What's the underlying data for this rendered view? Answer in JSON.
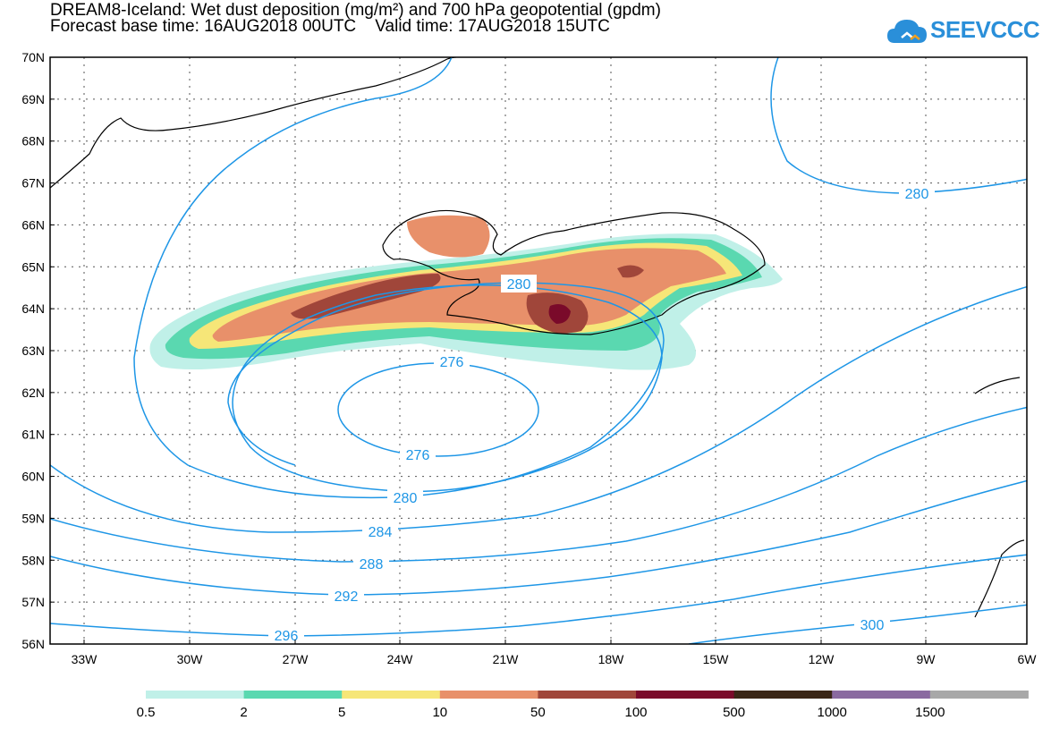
{
  "header": {
    "title_line1": "DREAM8-Iceland: Wet dust deposition (mg/m²) and 700 hPa geopotential (gpdm)",
    "title_line2": "Forecast base time: 16AUG2018 00UTC    Valid time: 17AUG2018 15UTC"
  },
  "logo": {
    "text": "SEEVCCC",
    "icon": "cloud-icon",
    "color": "#2a8fd9"
  },
  "map": {
    "lat_labels": [
      "70N",
      "69N",
      "68N",
      "67N",
      "66N",
      "65N",
      "64N",
      "63N",
      "62N",
      "61N",
      "60N",
      "59N",
      "58N",
      "57N",
      "56N"
    ],
    "lon_labels": [
      "33W",
      "30W",
      "27W",
      "24W",
      "21W",
      "18W",
      "15W",
      "12W",
      "9W",
      "6W"
    ],
    "contour_color": "#1e96e6",
    "contour_labels": [
      "280",
      "280",
      "276",
      "276",
      "280",
      "284",
      "288",
      "292",
      "296",
      "300"
    ]
  },
  "legend": {
    "labels": [
      "0.5",
      "2",
      "5",
      "10",
      "50",
      "100",
      "500",
      "1000",
      "1500"
    ],
    "colors": [
      "#c0f0e8",
      "#5ad8b0",
      "#f6e678",
      "#e8906a",
      "#a0463a",
      "#7a0a2a",
      "#3a2616",
      "#8a6aa0",
      "#a8a8a8"
    ]
  }
}
